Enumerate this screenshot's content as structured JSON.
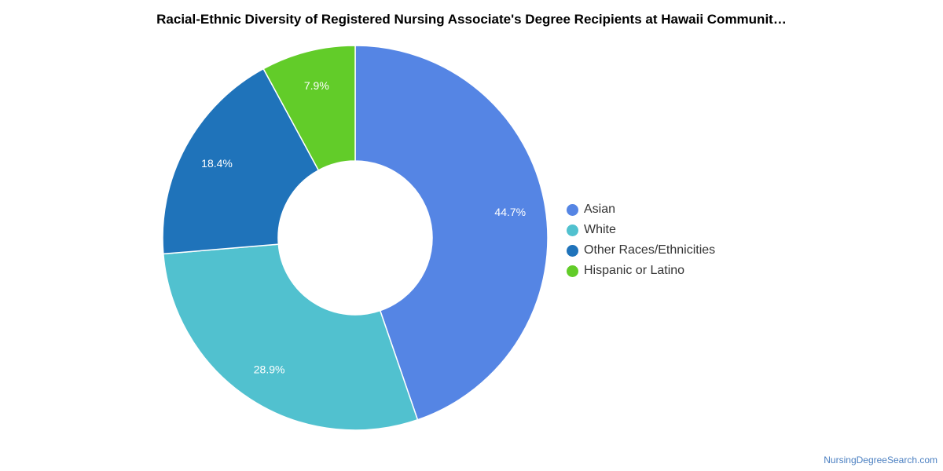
{
  "title": "Racial-Ethnic Diversity of Registered Nursing Associate's Degree Recipients at Hawaii Communit…",
  "credit": "NursingDegreeSearch.com",
  "chart_data": {
    "type": "pie",
    "variant": "donut",
    "title": "Racial-Ethnic Diversity of Registered Nursing Associate's Degree Recipients at Hawaii Communit…",
    "legend_position": "right",
    "series": [
      {
        "name": "Asian",
        "value": 44.7,
        "label": "44.7%",
        "color": "#5585e4"
      },
      {
        "name": "White",
        "value": 28.9,
        "label": "28.9%",
        "color": "#51c1cf"
      },
      {
        "name": "Other Races/Ethnicities",
        "value": 18.4,
        "label": "18.4%",
        "color": "#1f73ba"
      },
      {
        "name": "Hispanic or Latino",
        "value": 7.9,
        "label": "7.9%",
        "color": "#62cc29"
      }
    ]
  }
}
